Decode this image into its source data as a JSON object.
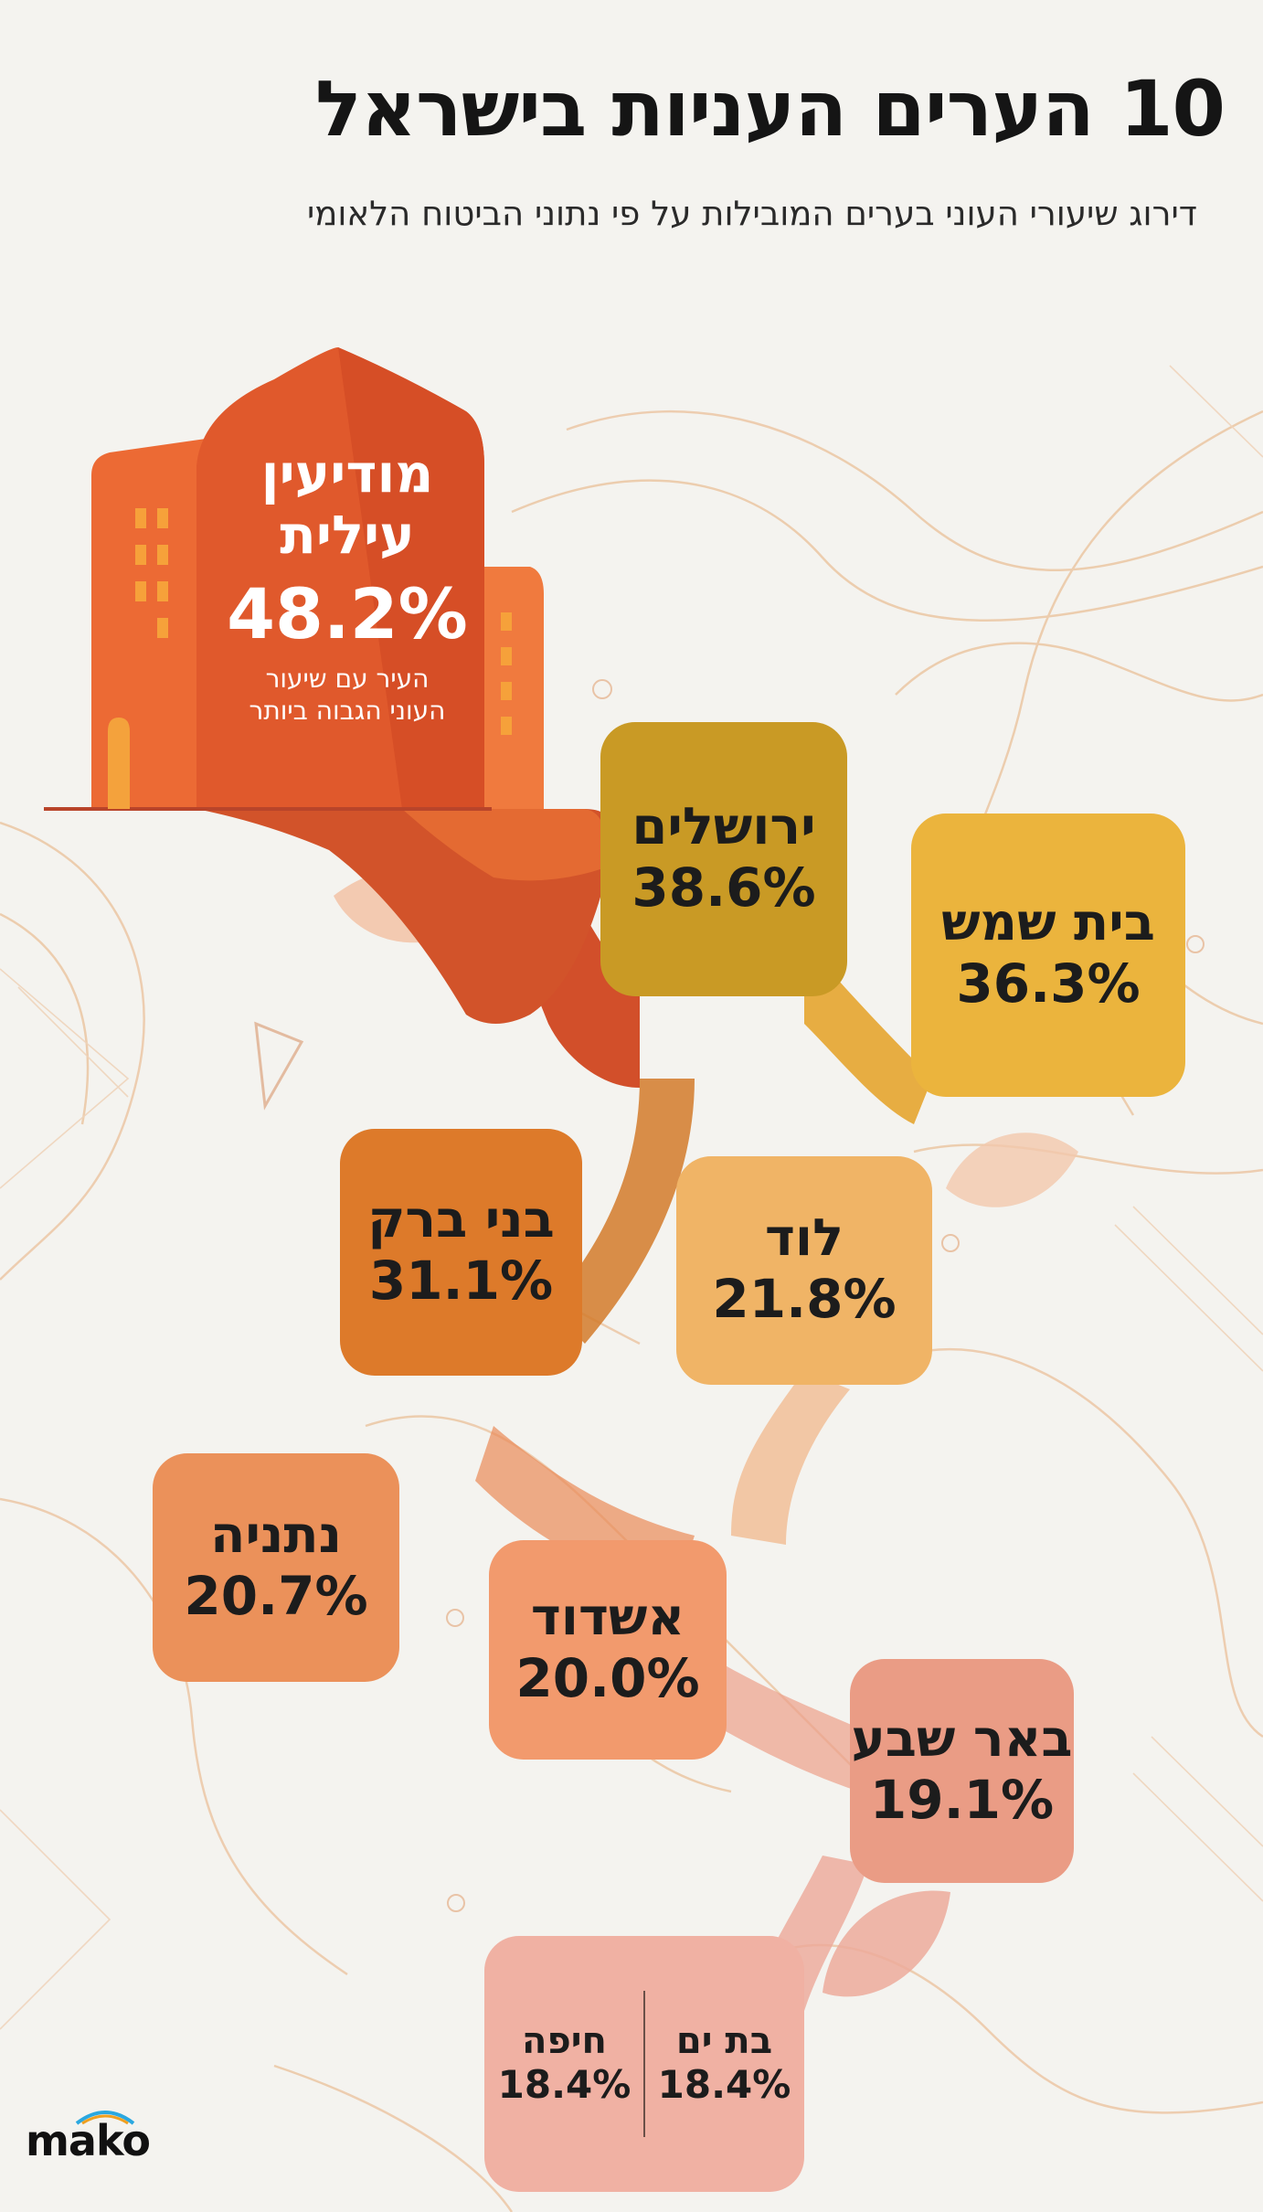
{
  "header": {
    "title": "10 הערים העניות בישראל",
    "subtitle": "דירוג שיעורי העוני בערים המובילות על פי נתוני הביטוח הלאומי"
  },
  "hero": {
    "city_line1": "מודיעין",
    "city_line2": "עילית",
    "rate": "48.2%",
    "note_line1": "העיר עם שיעור",
    "note_line2": "העוני הגבוה ביותר"
  },
  "cities": [
    {
      "name": "ירושלים",
      "rate": "38.6%",
      "color": "#c99a25"
    },
    {
      "name": "בית שמש",
      "rate": "36.3%",
      "color": "#ebb43d"
    },
    {
      "name": "בני ברק",
      "rate": "31.1%",
      "color": "#dd7a2a"
    },
    {
      "name": "לוד",
      "rate": "21.8%",
      "color": "#f0b466"
    },
    {
      "name": "נתניה",
      "rate": "20.7%",
      "color": "#eb915a"
    },
    {
      "name": "אשדוד",
      "rate": "20.0%",
      "color": "#f29a6d"
    },
    {
      "name": "באר שבע",
      "rate": "19.1%",
      "color": "#ea9c85"
    },
    {
      "name": "בת ים",
      "rate": "18.4%",
      "color": "#f0b1a3"
    },
    {
      "name": "חיפה",
      "rate": "18.4%",
      "color": "#f0b1a3"
    }
  ],
  "brand": {
    "logo": "mako"
  },
  "colors": {
    "hero": "#e0592c",
    "hero_dark": "#c44a25",
    "background": "#f4f3ef"
  }
}
